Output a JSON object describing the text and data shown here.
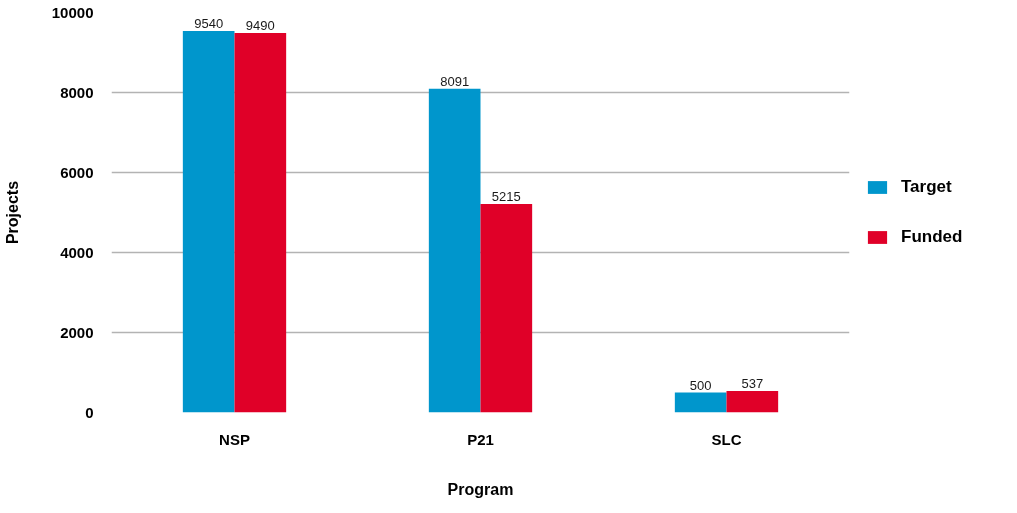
{
  "chart_data": {
    "type": "bar",
    "xlabel": "Program",
    "ylabel": "Projects",
    "categories": [
      "NSP",
      "P21",
      "SLC"
    ],
    "series": [
      {
        "name": "Target",
        "color": "#0096cc",
        "values": [
          9540,
          8091,
          500
        ]
      },
      {
        "name": "Funded",
        "color": "#e00028",
        "values": [
          9490,
          5215,
          537
        ]
      }
    ],
    "ylim": [
      0,
      10000
    ],
    "yticks": [
      0,
      2000,
      4000,
      6000,
      8000,
      10000
    ],
    "grid": "y",
    "legend": "right",
    "data_labels": true
  }
}
